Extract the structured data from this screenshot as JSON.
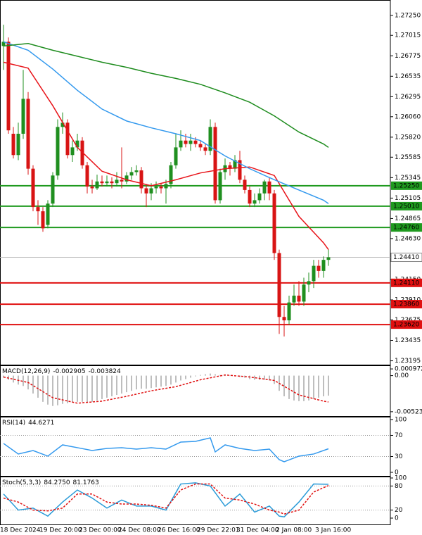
{
  "chart_data": [
    {
      "type": "candlestick",
      "categories": [
        "18 Dec 2024",
        null,
        null,
        null,
        null,
        null,
        null,
        null,
        "19 Dec 20:00",
        null,
        null,
        null,
        null,
        null,
        null,
        null,
        "23 Dec 00:00",
        null,
        null,
        null,
        null,
        null,
        null,
        null,
        "24 Dec 08:00",
        null,
        null,
        null,
        null,
        null,
        null,
        null,
        "26 Dec 16:00",
        null,
        null,
        null,
        null,
        null,
        null,
        null,
        "29 Dec 22:01",
        null,
        null,
        null,
        null,
        null,
        null,
        null,
        "31 Dec 04:00",
        null,
        null,
        null,
        null,
        null,
        null,
        null,
        "2 Jan 08:00",
        null,
        null,
        null,
        null,
        null,
        null,
        null,
        "3 Jan 16:00",
        null,
        null
      ],
      "open": [
        1.2689,
        1.2694,
        1.2586,
        1.2561,
        1.2586,
        1.2627,
        1.2545,
        1.25,
        1.2495,
        1.2479,
        1.2504,
        1.2537,
        1.2594,
        1.2599,
        1.2561,
        1.257,
        1.2578,
        1.2549,
        1.2524,
        1.2522,
        1.253,
        1.2528,
        1.253,
        1.2528,
        1.2532,
        1.253,
        1.2537,
        1.2541,
        1.2543,
        1.2522,
        1.2516,
        1.2522,
        1.2524,
        1.2522,
        1.2527,
        1.2549,
        1.257,
        1.2578,
        1.2574,
        1.2578,
        1.2574,
        1.257,
        1.2566,
        1.2594,
        1.2508,
        1.2541,
        1.2549,
        1.2545,
        1.2555,
        1.2532,
        1.252,
        1.2504,
        1.2508,
        1.2516,
        1.253,
        1.2516,
        1.2446,
        1.2371,
        1.2367,
        1.2388,
        1.2396,
        1.2389,
        1.2409,
        1.2413,
        1.2431,
        1.2425,
        1.2438
      ],
      "high": [
        1.2714,
        1.2699,
        1.2594,
        1.2599,
        1.2661,
        1.2635,
        1.2549,
        1.2508,
        1.25,
        1.2508,
        1.2541,
        1.2603,
        1.2611,
        1.2603,
        1.2578,
        1.2586,
        1.2582,
        1.2553,
        1.2532,
        1.2538,
        1.2537,
        1.2537,
        1.2535,
        1.2541,
        1.257,
        1.2541,
        1.2547,
        1.2549,
        1.2547,
        1.2527,
        1.2528,
        1.253,
        1.2528,
        1.2532,
        1.2553,
        1.2586,
        1.259,
        1.2586,
        1.2586,
        1.2582,
        1.2578,
        1.2574,
        1.2603,
        1.2599,
        1.2545,
        1.2557,
        1.2553,
        1.2561,
        1.2566,
        1.2537,
        1.2524,
        1.2516,
        1.2522,
        1.2532,
        1.2535,
        1.252,
        1.245,
        1.2384,
        1.2396,
        1.2409,
        1.2413,
        1.2417,
        1.2423,
        1.2438,
        1.2438,
        1.2442,
        1.245
      ],
      "low": [
        1.2661,
        1.2586,
        1.2557,
        1.2555,
        1.258,
        1.2538,
        1.2495,
        1.2479,
        1.2471,
        1.2475,
        1.25,
        1.2532,
        1.2586,
        1.2557,
        1.2553,
        1.2566,
        1.2545,
        1.2516,
        1.2516,
        1.252,
        1.2524,
        1.2524,
        1.2522,
        1.2524,
        1.2522,
        1.2527,
        1.2532,
        1.2537,
        1.2516,
        1.25,
        1.2508,
        1.2516,
        1.2516,
        1.2504,
        1.2522,
        1.2545,
        1.2566,
        1.257,
        1.2566,
        1.257,
        1.2566,
        1.2561,
        1.2561,
        1.2504,
        1.2504,
        1.2532,
        1.2537,
        1.2541,
        1.2528,
        1.2516,
        1.25,
        1.25,
        1.2504,
        1.2508,
        1.2508,
        1.2438,
        1.2351,
        1.2348,
        1.2362,
        1.2384,
        1.2384,
        1.2384,
        1.24,
        1.2405,
        1.2417,
        1.2417,
        1.2431
      ],
      "close": [
        1.2694,
        1.259,
        1.2561,
        1.2586,
        1.2627,
        1.2545,
        1.25,
        1.2495,
        1.2475,
        1.2504,
        1.2537,
        1.2594,
        1.2599,
        1.2561,
        1.257,
        1.2578,
        1.2549,
        1.2524,
        1.2522,
        1.253,
        1.2528,
        1.253,
        1.2528,
        1.2532,
        1.253,
        1.2537,
        1.2541,
        1.2543,
        1.2522,
        1.2516,
        1.2522,
        1.2524,
        1.2522,
        1.2527,
        1.2549,
        1.257,
        1.2578,
        1.2574,
        1.2578,
        1.2574,
        1.257,
        1.2566,
        1.2594,
        1.2508,
        1.2541,
        1.2549,
        1.2545,
        1.2555,
        1.2532,
        1.252,
        1.2504,
        1.2508,
        1.2516,
        1.253,
        1.2516,
        1.2446,
        1.2371,
        1.2367,
        1.2388,
        1.2396,
        1.2389,
        1.2409,
        1.2413,
        1.2431,
        1.2425,
        1.2438,
        1.2441
      ],
      "up_color": "#1f8f1f",
      "down_color": "#d81414",
      "series": [
        {
          "color": "#e8141a",
          "x": [
            0,
            5,
            10,
            15,
            20,
            25,
            30,
            35,
            40,
            45,
            50,
            55,
            60,
            65,
            66
          ],
          "values": [
            1.267,
            1.2663,
            1.2619,
            1.257,
            1.2542,
            1.2532,
            1.2525,
            1.2532,
            1.254,
            1.2545,
            1.2547,
            1.2537,
            1.2489,
            1.2458,
            1.245
          ]
        },
        {
          "color": "#3399ee",
          "x": [
            0,
            5,
            10,
            15,
            20,
            25,
            30,
            35,
            40,
            45,
            50,
            55,
            60,
            65,
            66
          ],
          "values": [
            1.2694,
            1.2684,
            1.2662,
            1.2637,
            1.2615,
            1.2601,
            1.2593,
            1.2586,
            1.2578,
            1.256,
            1.2545,
            1.2532,
            1.252,
            1.2508,
            1.2504
          ]
        },
        {
          "color": "#1e8c1e",
          "x": [
            0,
            5,
            10,
            15,
            20,
            25,
            30,
            35,
            40,
            45,
            50,
            55,
            60,
            65,
            66
          ],
          "values": [
            1.2689,
            1.2692,
            1.2684,
            1.2677,
            1.267,
            1.2664,
            1.2657,
            1.2651,
            1.2644,
            1.2634,
            1.2623,
            1.2607,
            1.2588,
            1.2574,
            1.257
          ]
        }
      ],
      "levels": [
        {
          "value": 1.2525,
          "label": "1.25250",
          "color": "#1f9a1f"
        },
        {
          "value": 1.2501,
          "label": "1.25010",
          "color": "#1f9a1f"
        },
        {
          "value": 1.2476,
          "label": "1.24760",
          "color": "#1f9a1f"
        },
        {
          "value": 1.2411,
          "label": "1.24110",
          "color": "#e01010"
        },
        {
          "value": 1.2386,
          "label": "1.23860",
          "color": "#e01010"
        },
        {
          "value": 1.2362,
          "label": "1.23620",
          "color": "#e01010"
        }
      ],
      "current_price": {
        "value": 1.2441,
        "label": "1.24410"
      },
      "ylim": [
        1.2315,
        1.2743
      ],
      "yticks": [
        {
          "value": 1.2725,
          "label": "1.27250"
        },
        1.27015,
        1.26775,
        1.26535,
        1.26295,
        {
          "value": 1.2606,
          "label": "1.26060"
        },
        {
          "value": 1.2582,
          "label": "1.25820"
        },
        1.25585,
        1.25345,
        1.25105,
        1.24865,
        {
          "value": 1.2463,
          "label": "1.24630"
        },
        {
          "value": 1.2415,
          "label": "1.24150"
        },
        {
          "value": 1.2391,
          "label": "1.23910"
        },
        1.23675,
        1.23435,
        1.23195
      ]
    },
    {
      "type": "macd",
      "title": "MACD(12,26,9)",
      "last_values": [
        -0.002905,
        -0.003824
      ],
      "color": "#a8a8a8",
      "values": [
        -0.0003,
        -0.0006,
        -0.001,
        -0.0013,
        -0.0015,
        -0.002,
        -0.0026,
        -0.0032,
        -0.0038,
        -0.0042,
        -0.0044,
        -0.0043,
        -0.0041,
        -0.004,
        -0.0039,
        -0.0038,
        -0.0038,
        -0.0039,
        -0.0038,
        -0.0036,
        -0.0034,
        -0.0032,
        -0.003,
        -0.0028,
        -0.0026,
        -0.0024,
        -0.0022,
        -0.002,
        -0.0019,
        -0.0019,
        -0.0018,
        -0.0017,
        -0.0016,
        -0.0015,
        -0.0013,
        -0.001,
        -0.0007,
        -0.0005,
        -0.0003,
        -0.0001,
        0.0001,
        0.0002,
        0.0003,
        0.0002,
        0.0001,
        0,
        0,
        -0.0001,
        -0.0002,
        -0.0003,
        -0.0005,
        -0.0006,
        -0.0006,
        -0.0006,
        -0.0007,
        -0.0012,
        -0.0022,
        -0.003,
        -0.0034,
        -0.0036,
        -0.0037,
        -0.0037,
        -0.0036,
        -0.0034,
        -0.0032,
        -0.003,
        -0.002905
      ],
      "series": [
        {
          "color": "#e01010",
          "style": "dashed",
          "x": [
            0,
            5,
            10,
            15,
            20,
            25,
            30,
            35,
            40,
            45,
            50,
            55,
            60,
            65,
            66
          ],
          "values": [
            -0.0002,
            -0.001,
            -0.0032,
            -0.004,
            -0.0037,
            -0.003,
            -0.0022,
            -0.0016,
            -0.0006,
            0.0001,
            -0.0002,
            -0.0007,
            -0.0028,
            -0.0037,
            -0.003824
          ]
        }
      ],
      "ylim": [
        -0.00586,
        0.00149
      ],
      "yticks": [
        -0.005235,
        {
          "value": 0,
          "label": "0.00"
        },
        0.000972
      ]
    },
    {
      "type": "line",
      "title": "RSI(14)",
      "last_values": [
        44.6271
      ],
      "series": [
        {
          "color": "#3399ee",
          "x": [
            0,
            3,
            6,
            9,
            12,
            15,
            18,
            21,
            24,
            27,
            30,
            33,
            36,
            39,
            42,
            43,
            45,
            48,
            51,
            54,
            56,
            57,
            60,
            63,
            66
          ],
          "values": [
            54.7,
            34.7,
            41.3,
            30.7,
            52,
            46.7,
            41.3,
            45.3,
            46.7,
            44,
            46.7,
            44,
            57.3,
            58.7,
            65.3,
            38.7,
            52,
            45.3,
            41.3,
            44,
            24,
            20,
            30.7,
            34.7,
            44.6271
          ]
        }
      ],
      "levels": [
        30,
        70
      ],
      "ylim": [
        -6.7,
        105.3
      ],
      "yticks": [
        0,
        30,
        70,
        100
      ]
    },
    {
      "type": "line",
      "title": "Stoch(5,3,3)",
      "last_values": [
        {
          "value": 84.275,
          "label": "84.2750"
        },
        81.1763
      ],
      "series": [
        {
          "color": "#2a9bd8",
          "x": [
            0,
            3,
            6,
            9,
            12,
            15,
            18,
            21,
            24,
            27,
            30,
            33,
            36,
            39,
            42,
            45,
            48,
            51,
            54,
            56,
            57,
            60,
            63,
            66
          ],
          "values": [
            60,
            20,
            25,
            5,
            40,
            70,
            50,
            25,
            45,
            30,
            30,
            20,
            85,
            88,
            80,
            30,
            60,
            15,
            30,
            5,
            3,
            40,
            85,
            84.275
          ]
        },
        {
          "color": "#e01010",
          "style": "dashed",
          "x": [
            0,
            3,
            6,
            9,
            12,
            15,
            18,
            21,
            24,
            27,
            30,
            33,
            36,
            39,
            42,
            45,
            48,
            51,
            54,
            56,
            57,
            60,
            63,
            66
          ],
          "values": [
            50,
            40,
            20,
            18,
            25,
            60,
            60,
            40,
            35,
            35,
            32,
            25,
            70,
            85,
            85,
            50,
            45,
            35,
            20,
            15,
            10,
            20,
            65,
            81.1763
          ]
        }
      ],
      "levels": [
        20,
        80
      ],
      "ylim": [
        -15.8,
        103.5
      ],
      "yticks": [
        0,
        20,
        80,
        100
      ]
    }
  ]
}
